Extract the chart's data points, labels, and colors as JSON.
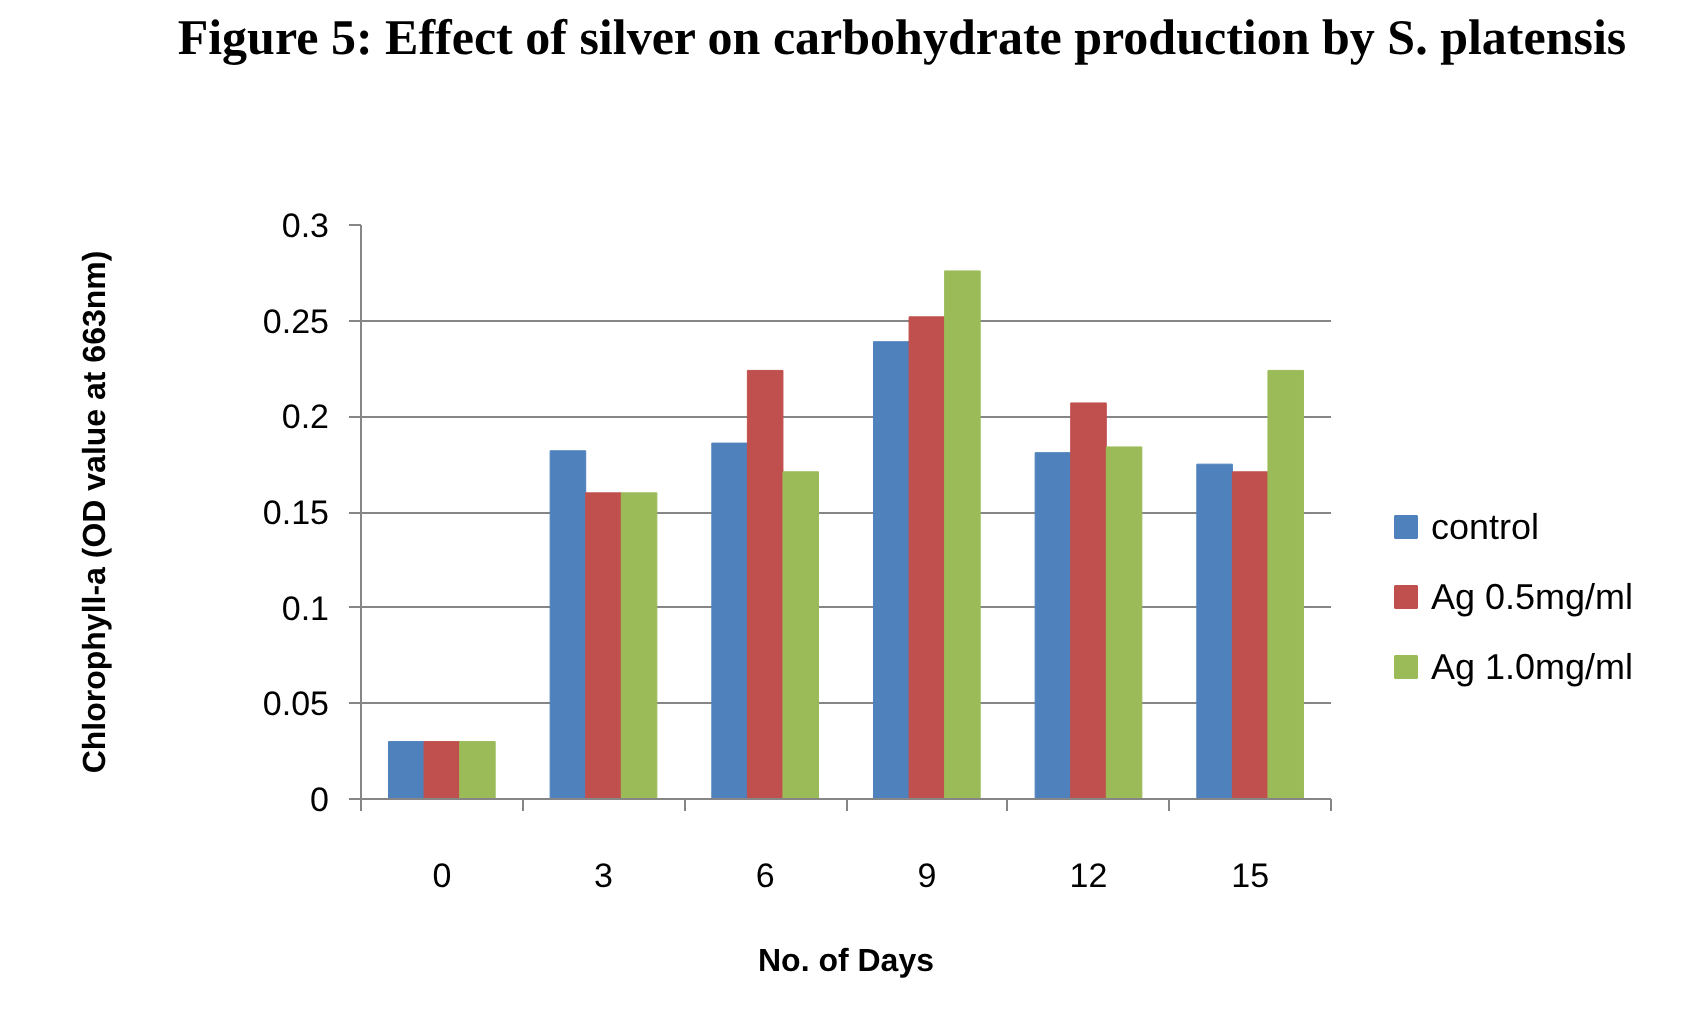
{
  "chart_data": {
    "type": "bar",
    "title": "Figure 5: Effect of silver on carbohydrate production by S. platensis",
    "xlabel": "No. of Days",
    "ylabel": "Chlorophyll-a (OD value at 663nm)",
    "categories": [
      "0",
      "3",
      "6",
      "9",
      "12",
      "15"
    ],
    "series": [
      {
        "name": "control",
        "color": "#4f81bd",
        "values": [
          0.03,
          0.182,
          0.186,
          0.239,
          0.181,
          0.175
        ]
      },
      {
        "name": "Ag 0.5mg/ml",
        "color": "#c0504d",
        "values": [
          0.03,
          0.16,
          0.224,
          0.252,
          0.207,
          0.171
        ]
      },
      {
        "name": "Ag 1.0mg/ml",
        "color": "#9bbb59",
        "values": [
          0.03,
          0.16,
          0.171,
          0.276,
          0.184,
          0.224
        ]
      }
    ],
    "ylim": [
      0,
      0.3
    ],
    "yticks": [
      0,
      0.05,
      0.1,
      0.15,
      0.2,
      0.25,
      0.3
    ],
    "grid": "y",
    "legend": "right"
  }
}
